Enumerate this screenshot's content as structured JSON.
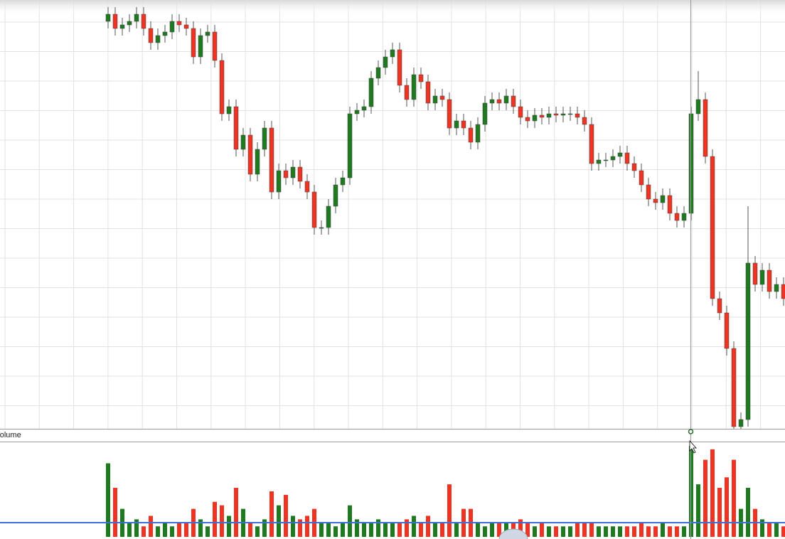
{
  "chart_data": {
    "type": "candlestick",
    "open": [
      590,
      600,
      580,
      585,
      590,
      600,
      580,
      560,
      570,
      575,
      590,
      585,
      580,
      540,
      570,
      575,
      535,
      460,
      470,
      410,
      430,
      375,
      410,
      440,
      350,
      380,
      370,
      385,
      365,
      350,
      300,
      300,
      330,
      360,
      370,
      460,
      465,
      470,
      510,
      525,
      540,
      550,
      500,
      480,
      515,
      505,
      475,
      485,
      480,
      440,
      450,
      440,
      420,
      445,
      475,
      480,
      475,
      485,
      470,
      455,
      450,
      458,
      455,
      460,
      458,
      460,
      460,
      455,
      445,
      390,
      395,
      395,
      400,
      405,
      390,
      380,
      360,
      340,
      335,
      345,
      320,
      310,
      320,
      460,
      480,
      400,
      200,
      180,
      130,
      20,
      30,
      250,
      220,
      240,
      210,
      220
    ],
    "high": [
      610,
      610,
      595,
      600,
      610,
      610,
      590,
      580,
      585,
      600,
      600,
      595,
      590,
      580,
      585,
      585,
      545,
      480,
      480,
      440,
      440,
      420,
      450,
      450,
      390,
      390,
      395,
      395,
      375,
      360,
      310,
      340,
      370,
      380,
      470,
      475,
      480,
      520,
      535,
      550,
      560,
      560,
      510,
      525,
      525,
      515,
      495,
      495,
      490,
      460,
      460,
      450,
      455,
      485,
      490,
      490,
      495,
      495,
      480,
      465,
      468,
      468,
      470,
      470,
      470,
      470,
      470,
      465,
      455,
      405,
      405,
      410,
      415,
      415,
      400,
      390,
      370,
      350,
      355,
      355,
      330,
      330,
      470,
      520,
      490,
      410,
      210,
      190,
      140,
      40,
      330,
      260,
      250,
      250,
      230,
      230
    ],
    "low": [
      580,
      570,
      570,
      575,
      580,
      570,
      550,
      550,
      560,
      565,
      575,
      570,
      530,
      530,
      560,
      525,
      450,
      450,
      400,
      400,
      365,
      365,
      400,
      340,
      340,
      360,
      360,
      355,
      340,
      290,
      290,
      290,
      320,
      350,
      360,
      450,
      455,
      460,
      500,
      515,
      530,
      490,
      470,
      470,
      495,
      465,
      465,
      470,
      430,
      430,
      430,
      410,
      410,
      435,
      465,
      465,
      465,
      460,
      445,
      440,
      440,
      445,
      445,
      448,
      448,
      450,
      445,
      435,
      380,
      380,
      385,
      385,
      390,
      380,
      370,
      350,
      330,
      325,
      325,
      310,
      300,
      300,
      310,
      450,
      390,
      190,
      170,
      120,
      10,
      10,
      20,
      210,
      210,
      200,
      200,
      190
    ],
    "close": [
      600,
      580,
      585,
      590,
      600,
      580,
      560,
      570,
      575,
      590,
      585,
      580,
      540,
      570,
      575,
      535,
      460,
      470,
      410,
      430,
      375,
      410,
      440,
      350,
      380,
      370,
      385,
      365,
      350,
      300,
      300,
      330,
      360,
      370,
      460,
      465,
      470,
      510,
      525,
      540,
      550,
      500,
      480,
      515,
      505,
      475,
      485,
      480,
      440,
      450,
      440,
      420,
      445,
      475,
      480,
      475,
      485,
      470,
      455,
      450,
      458,
      455,
      460,
      458,
      460,
      460,
      455,
      445,
      390,
      395,
      395,
      400,
      405,
      390,
      380,
      360,
      340,
      335,
      345,
      320,
      310,
      320,
      460,
      480,
      400,
      200,
      180,
      130,
      20,
      30,
      250,
      220,
      240,
      210,
      220,
      200
    ],
    "ylim": [
      0,
      620
    ],
    "up_color": "#1e7a1e",
    "down_color": "#ee3322",
    "volume": {
      "label": "Volume",
      "ylim": [
        0,
        135
      ],
      "values": [
        105,
        70,
        40,
        20,
        25,
        15,
        30,
        15,
        20,
        15,
        20,
        20,
        40,
        25,
        15,
        50,
        45,
        30,
        70,
        40,
        20,
        15,
        25,
        65,
        45,
        60,
        30,
        25,
        30,
        40,
        20,
        20,
        15,
        20,
        45,
        25,
        20,
        20,
        25,
        20,
        20,
        20,
        25,
        30,
        20,
        30,
        20,
        20,
        75,
        20,
        40,
        40,
        20,
        15,
        20,
        20,
        20,
        20,
        25,
        20,
        15,
        20,
        15,
        15,
        15,
        15,
        20,
        20,
        20,
        15,
        15,
        15,
        15,
        15,
        15,
        20,
        15,
        15,
        20,
        15,
        15,
        15,
        130,
        75,
        110,
        125,
        70,
        85,
        110,
        40,
        70,
        40,
        25,
        20,
        20,
        15
      ]
    }
  }
}
